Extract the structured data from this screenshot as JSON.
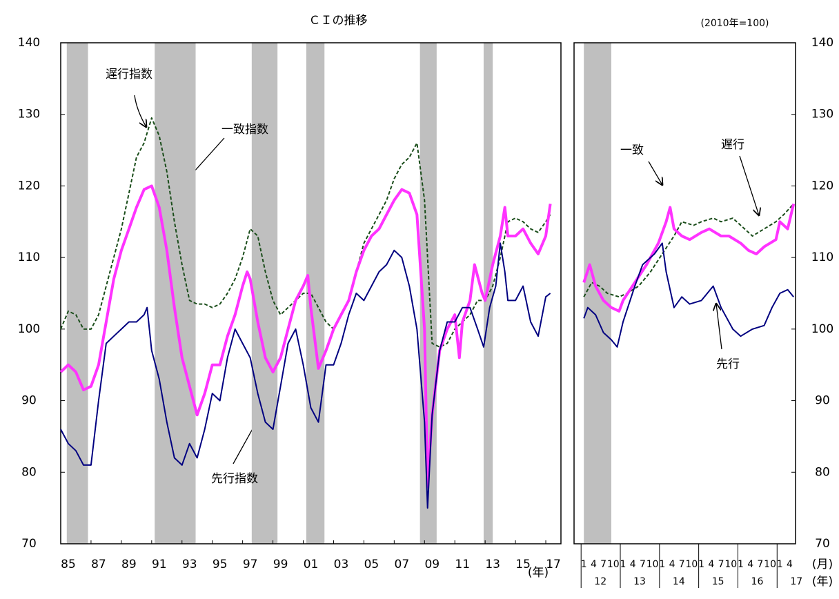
{
  "chart_data": [
    {
      "type": "line",
      "title": "ＣＩの推移",
      "xlabel": "(年)",
      "xlim": [
        1985,
        2018
      ],
      "ylim": [
        70,
        140
      ],
      "y_axis_side": "left",
      "yticks": [
        70,
        80,
        90,
        100,
        110,
        120,
        130,
        140
      ],
      "xticks": [
        {
          "value": 1985,
          "label": "85"
        },
        {
          "value": 1987,
          "label": "87"
        },
        {
          "value": 1989,
          "label": "89"
        },
        {
          "value": 1991,
          "label": "91"
        },
        {
          "value": 1993,
          "label": "93"
        },
        {
          "value": 1995,
          "label": "95"
        },
        {
          "value": 1997,
          "label": "97"
        },
        {
          "value": 1999,
          "label": "99"
        },
        {
          "value": 2001,
          "label": "01"
        },
        {
          "value": 2003,
          "label": "03"
        },
        {
          "value": 2005,
          "label": "05"
        },
        {
          "value": 2007,
          "label": "07"
        },
        {
          "value": 2009,
          "label": "09"
        },
        {
          "value": 2011,
          "label": "11"
        },
        {
          "value": 2013,
          "label": "13"
        },
        {
          "value": 2015,
          "label": "15"
        },
        {
          "value": 2017,
          "label": "17"
        }
      ],
      "shaded_periods": [
        [
          1985.4,
          1986.8
        ],
        [
          1991.2,
          1993.9
        ],
        [
          1997.6,
          1999.3
        ],
        [
          2001.2,
          2002.4
        ],
        [
          2008.7,
          2009.8
        ],
        [
          2012.9,
          2013.5
        ]
      ],
      "shade_color": "#bfbfbf",
      "series": [
        {
          "name": "遅行指数",
          "color": "#1a4d1a",
          "line_style": "dashed",
          "width": 2,
          "x": [
            1985,
            1985.5,
            1986,
            1986.5,
            1987,
            1987.5,
            1988,
            1988.5,
            1989,
            1989.5,
            1990,
            1990.5,
            1991,
            1991.5,
            1992,
            1992.5,
            1993,
            1993.5,
            1994,
            1994.5,
            1995,
            1995.5,
            1996,
            1996.5,
            1997,
            1997.5,
            1998,
            1998.5,
            1999,
            1999.5,
            2000,
            2000.5,
            2001,
            2001.5,
            2002,
            2002.5,
            2003,
            2003.5,
            2004,
            2004.5,
            2005,
            2005.5,
            2006,
            2006.5,
            2007,
            2007.5,
            2008,
            2008.5,
            2009,
            2009.5,
            2010,
            2010.5,
            2011,
            2011.5,
            2012,
            2012.5,
            2013,
            2013.5,
            2014,
            2014.5,
            2015,
            2015.5,
            2016,
            2016.5,
            2017,
            2017.3
          ],
          "values": [
            100,
            102.5,
            102,
            100,
            100,
            102,
            106,
            110,
            114,
            119,
            124,
            126,
            129.5,
            127,
            122,
            115,
            109,
            104,
            103.5,
            103.5,
            103,
            103.5,
            105,
            107,
            110,
            114,
            113,
            108,
            104,
            102,
            103,
            104,
            105,
            105,
            103,
            101,
            100,
            102,
            104,
            108,
            112,
            114,
            116,
            118,
            121,
            123,
            124,
            126,
            118,
            98,
            97.5,
            98,
            100,
            101,
            102,
            104,
            104,
            106,
            110,
            115,
            115.5,
            115,
            114,
            113.5,
            115,
            116
          ]
        },
        {
          "name": "一致指数",
          "color": "#ff33ff",
          "line_style": "solid",
          "width": 4,
          "x": [
            1985,
            1985.5,
            1986,
            1986.5,
            1987,
            1987.5,
            1988,
            1988.5,
            1989,
            1989.5,
            1990,
            1990.5,
            1991,
            1991.5,
            1992,
            1992.5,
            1993,
            1993.5,
            1994,
            1994.5,
            1995,
            1995.5,
            1996,
            1996.5,
            1997,
            1997.3,
            1997.5,
            1998,
            1998.5,
            1999,
            1999.5,
            2000,
            2000.5,
            2001,
            2001.3,
            2001.5,
            2002,
            2002.5,
            2003,
            2003.5,
            2004,
            2004.5,
            2005,
            2005.5,
            2006,
            2006.5,
            2007,
            2007.5,
            2008,
            2008.5,
            2009,
            2009.2,
            2009.5,
            2010,
            2010.5,
            2011,
            2011.3,
            2011.5,
            2012,
            2012.3,
            2012.8,
            2013,
            2013.5,
            2014,
            2014.3,
            2014.5,
            2015,
            2015.5,
            2016,
            2016.5,
            2017,
            2017.3
          ],
          "values": [
            94,
            95,
            94,
            91.5,
            92,
            95,
            101,
            107,
            111,
            114,
            117,
            119.5,
            120,
            117,
            111,
            103,
            96,
            92,
            88,
            91,
            95,
            95,
            99,
            102,
            106,
            108,
            107,
            101,
            96,
            94,
            96,
            100,
            104,
            106,
            107.5,
            103,
            94.5,
            97,
            100,
            102,
            104,
            108,
            111,
            113,
            114,
            116,
            118,
            119.5,
            119,
            116,
            100,
            78,
            88,
            97,
            100,
            102,
            96,
            101,
            104,
            109,
            105,
            104,
            109,
            113,
            117,
            113,
            113,
            114,
            112,
            110.5,
            113,
            117.5
          ]
        },
        {
          "name": "先行指数",
          "color": "#000080",
          "line_style": "solid",
          "width": 2,
          "x": [
            1985,
            1985.5,
            1986,
            1986.5,
            1987,
            1987.5,
            1988,
            1988.5,
            1989,
            1989.5,
            1990,
            1990.5,
            1990.7,
            1991,
            1991.5,
            1992,
            1992.5,
            1993,
            1993.5,
            1994,
            1994.5,
            1995,
            1995.5,
            1996,
            1996.5,
            1997,
            1997.5,
            1998,
            1998.5,
            1999,
            1999.5,
            2000,
            2000.5,
            2001,
            2001.5,
            2002,
            2002.5,
            2003,
            2003.5,
            2004,
            2004.5,
            2005,
            2005.5,
            2006,
            2006.5,
            2007,
            2007.5,
            2008,
            2008.5,
            2009,
            2009.2,
            2009.5,
            2010,
            2010.5,
            2011,
            2011.5,
            2012,
            2012.5,
            2012.9,
            2013.3,
            2013.7,
            2014,
            2014.3,
            2014.5,
            2015,
            2015.5,
            2016,
            2016.5,
            2017,
            2017.3
          ],
          "values": [
            86,
            84,
            83,
            81,
            81,
            90,
            98,
            99,
            100,
            101,
            101,
            102,
            103,
            97,
            93,
            87,
            82,
            81,
            84,
            82,
            86,
            91,
            90,
            96,
            100,
            98,
            96,
            91,
            87,
            86,
            92,
            98,
            100,
            95,
            89,
            87,
            95,
            95,
            98,
            102,
            105,
            104,
            106,
            108,
            109,
            111,
            110,
            106,
            100,
            87,
            75,
            88,
            97,
            101,
            101,
            103,
            103,
            100,
            97.5,
            103,
            106,
            112,
            108,
            104,
            104,
            106,
            101,
            99,
            104.5,
            105
          ]
        }
      ]
    },
    {
      "type": "line",
      "note": "(2010年=100)",
      "xlabel": "(月)",
      "year_label": "(年)",
      "xlim": [
        2011.75,
        2017.4
      ],
      "ylim": [
        70,
        140
      ],
      "y_axis_side": "right",
      "yticks": [
        70,
        80,
        90,
        100,
        110,
        120,
        130,
        140
      ],
      "xticks": [
        {
          "value": 2012,
          "label": "1"
        },
        {
          "value": 2012.25,
          "label": "4"
        },
        {
          "value": 2012.5,
          "label": "7"
        },
        {
          "value": 2012.75,
          "label": "10"
        },
        {
          "value": 2013,
          "label": "1"
        },
        {
          "value": 2013.25,
          "label": "4"
        },
        {
          "value": 2013.5,
          "label": "7"
        },
        {
          "value": 2013.75,
          "label": "10"
        },
        {
          "value": 2014,
          "label": "1"
        },
        {
          "value": 2014.25,
          "label": "4"
        },
        {
          "value": 2014.5,
          "label": "7"
        },
        {
          "value": 2014.75,
          "label": "10"
        },
        {
          "value": 2015,
          "label": "1"
        },
        {
          "value": 2015.25,
          "label": "4"
        },
        {
          "value": 2015.5,
          "label": "7"
        },
        {
          "value": 2015.75,
          "label": "10"
        },
        {
          "value": 2016,
          "label": "1"
        },
        {
          "value": 2016.25,
          "label": "4"
        },
        {
          "value": 2016.5,
          "label": "7"
        },
        {
          "value": 2016.75,
          "label": "10"
        },
        {
          "value": 2017,
          "label": "1"
        },
        {
          "value": 2017.25,
          "label": "4"
        }
      ],
      "year_ticks": [
        {
          "value": 2012,
          "label": "12"
        },
        {
          "value": 2013,
          "label": "13"
        },
        {
          "value": 2014,
          "label": "14"
        },
        {
          "value": 2015,
          "label": "15"
        },
        {
          "value": 2016,
          "label": "16"
        },
        {
          "value": 2017,
          "label": "17"
        }
      ],
      "shaded_periods": [
        [
          2012.0,
          2012.7
        ]
      ],
      "shade_color": "#bfbfbf",
      "series": [
        {
          "name": "遅行",
          "color": "#1a4d1a",
          "line_style": "dashed",
          "width": 2,
          "x": [
            2012,
            2012.2,
            2012.4,
            2012.6,
            2012.9,
            2013.1,
            2013.4,
            2013.7,
            2014,
            2014.3,
            2014.5,
            2014.8,
            2015,
            2015.3,
            2015.5,
            2015.8,
            2016,
            2016.3,
            2016.6,
            2016.9,
            2017.1,
            2017.35
          ],
          "values": [
            104.5,
            106.5,
            106,
            105,
            104.5,
            105,
            106,
            108,
            110.5,
            113,
            115,
            114.5,
            115,
            115.5,
            115,
            115.5,
            114.5,
            113,
            114,
            115,
            116,
            117.5
          ]
        },
        {
          "name": "一致",
          "color": "#ff33ff",
          "line_style": "solid",
          "width": 4,
          "x": [
            2012,
            2012.15,
            2012.3,
            2012.5,
            2012.7,
            2012.9,
            2013,
            2013.3,
            2013.6,
            2013.9,
            2014.1,
            2014.2,
            2014.3,
            2014.5,
            2014.7,
            2015,
            2015.2,
            2015.5,
            2015.7,
            2016,
            2016.2,
            2016.4,
            2016.6,
            2016.9,
            2017,
            2017.2,
            2017.35
          ],
          "values": [
            106.5,
            109,
            106,
            104,
            103,
            102.5,
            104,
            106.5,
            109,
            112,
            115,
            117,
            114,
            113,
            112.5,
            113.5,
            114,
            113,
            113,
            112,
            111,
            110.5,
            111.5,
            112.5,
            115,
            114,
            117.5
          ]
        },
        {
          "name": "先行",
          "color": "#000080",
          "line_style": "solid",
          "width": 2,
          "x": [
            2012,
            2012.1,
            2012.3,
            2012.5,
            2012.7,
            2012.85,
            2013,
            2013.3,
            2013.5,
            2013.8,
            2014,
            2014.1,
            2014.3,
            2014.5,
            2014.7,
            2015,
            2015.3,
            2015.5,
            2015.8,
            2016,
            2016.3,
            2016.6,
            2016.8,
            2017,
            2017.2,
            2017.35
          ],
          "values": [
            101.5,
            103,
            102,
            99.5,
            98.5,
            97.5,
            101,
            106,
            109,
            110.5,
            112,
            108,
            103,
            104.5,
            103.5,
            104,
            106,
            103,
            100,
            99,
            100,
            100.5,
            103,
            105,
            105.5,
            104.5
          ]
        }
      ]
    }
  ]
}
